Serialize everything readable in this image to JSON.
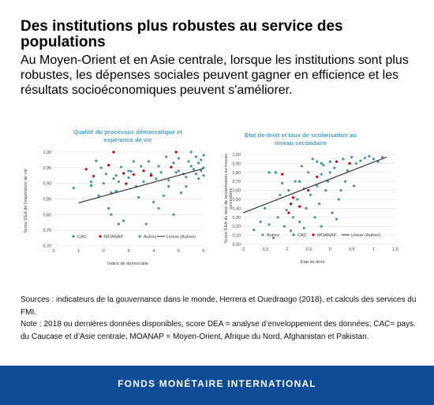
{
  "header": {
    "title": "Des institutions plus robustes au service des populations",
    "subtitle": "Au Moyen-Orient et en Asie centrale, lorsque les institutions sont plus robustes, les dépenses sociales peuvent gagner en efficience et les résultats socioéconomiques peuvent s'améliorer."
  },
  "colors": {
    "autres": "#4a8fb3",
    "cac": "#1f9e6e",
    "moanap": "#c00000",
    "trend": "#262626",
    "title_blue": "#4aa2c8",
    "footer_bg": "#0f4c97"
  },
  "chart_data": [
    {
      "type": "scatter",
      "title_lines": [
        "Qualité du processus démocratique et",
        "espérance de vie"
      ],
      "xlabel": "Indice de démocratie",
      "ylabel": "Score DEA de l'espérance de vie",
      "xlim": [
        0,
        6
      ],
      "ylim": [
        0.7,
        1.0
      ],
      "xticks": [
        "0",
        "1",
        "2",
        "3",
        "4",
        "5",
        "6"
      ],
      "yticks": [
        "0,70",
        "0,75",
        "0,80",
        "0,85",
        "0,90",
        "0,95",
        "1,00"
      ],
      "grid": true,
      "legend": [
        "CAC",
        "MOANAP",
        "Autres",
        "Linear (Autres)"
      ],
      "trendline": {
        "x": [
          1.0,
          6.0
        ],
        "y": [
          0.8375,
          0.9475
        ]
      },
      "series": [
        {
          "name": "CAC",
          "points": [
            [
              1.5,
              0.893
            ],
            [
              2.5,
              0.875
            ]
          ]
        },
        {
          "name": "MOANAP",
          "points": [
            [
              1.3,
              0.945
            ],
            [
              1.6,
              0.923
            ],
            [
              2.2,
              0.958
            ],
            [
              2.8,
              0.932
            ],
            [
              3.2,
              0.928
            ],
            [
              3.6,
              0.94
            ],
            [
              3.9,
              0.925
            ],
            [
              4.7,
              0.952
            ],
            [
              2.4,
              1.0
            ],
            [
              4.9,
              1.0
            ],
            [
              2.9,
              0.899
            ]
          ]
        },
        {
          "name": "Autres",
          "points": [
            [
              1.7,
              0.972
            ],
            [
              1.9,
              0.95
            ],
            [
              2.1,
              0.93
            ],
            [
              2.3,
              0.87
            ],
            [
              2.5,
              0.925
            ],
            [
              2.6,
              0.905
            ],
            [
              2.7,
              0.952
            ],
            [
              3.0,
              0.918
            ],
            [
              3.1,
              0.938
            ],
            [
              3.3,
              0.89
            ],
            [
              3.5,
              0.955
            ],
            [
              3.6,
              0.905
            ],
            [
              3.8,
              0.97
            ],
            [
              3.9,
              0.93
            ],
            [
              4.1,
              0.915
            ],
            [
              4.2,
              0.955
            ],
            [
              4.3,
              0.935
            ],
            [
              4.5,
              0.985
            ],
            [
              4.6,
              0.91
            ],
            [
              4.8,
              0.965
            ],
            [
              5.0,
              0.94
            ],
            [
              5.2,
              0.93
            ],
            [
              5.4,
              0.97
            ],
            [
              5.5,
              0.955
            ],
            [
              5.6,
              0.945
            ],
            [
              5.7,
              0.985
            ],
            [
              5.8,
              0.965
            ],
            [
              5.9,
              0.975
            ],
            [
              6.0,
              0.99
            ],
            [
              6.0,
              0.95
            ],
            [
              5.9,
              0.94
            ],
            [
              5.3,
              0.89
            ],
            [
              4.4,
              0.86
            ],
            [
              4.0,
              0.84
            ],
            [
              3.4,
              0.855
            ],
            [
              2.2,
              0.82
            ],
            [
              2.3,
              0.8
            ],
            [
              2.8,
              0.78
            ],
            [
              3.7,
              0.77
            ],
            [
              4.8,
              0.8
            ],
            [
              5.1,
              0.87
            ],
            [
              5.8,
              0.915
            ],
            [
              1.5,
              0.905
            ],
            [
              1.8,
              0.86
            ],
            [
              2.4,
              0.915
            ],
            [
              3.0,
              0.94
            ],
            [
              4.6,
              0.89
            ],
            [
              5.5,
              1.0
            ],
            [
              5.0,
              0.98
            ],
            [
              2.0,
              0.9
            ],
            [
              3.2,
              0.97
            ],
            [
              5.3,
              0.92
            ],
            [
              6.0,
              0.925
            ],
            [
              5.7,
              0.93
            ],
            [
              4.9,
              0.935
            ],
            [
              0.8,
              0.885
            ],
            [
              2.6,
              0.77
            ],
            [
              4.2,
              0.82
            ]
          ]
        }
      ]
    },
    {
      "type": "scatter",
      "title_lines": [
        "État de droit et taux de scolarisation au",
        "niveau secondaire"
      ],
      "xlabel": "État de droit",
      "ylabel_lines": [
        "Score DEA du taux de scolarisation au niveau",
        "secondaire"
      ],
      "xlim": [
        -2,
        1.5
      ],
      "ylim": [
        0.0,
        1.0
      ],
      "xticks": [
        "-2",
        "-1,5",
        "-1",
        "-0,5",
        "0",
        "0,5",
        "1",
        "1,5"
      ],
      "yticks": [
        "0,00",
        "0,10",
        "0,20",
        "0,30",
        "0,40",
        "0,50",
        "0,60",
        "0,70",
        "0,80",
        "0,90",
        "1,00"
      ],
      "grid": true,
      "legend": [
        "Autres",
        "CAC",
        "MOANAP",
        "Linear (Autres)"
      ],
      "trendline": {
        "x": [
          -2.0,
          1.3
        ],
        "y": [
          0.35,
          0.97
        ]
      },
      "series": [
        {
          "name": "CAC",
          "points": [
            [
              -1.4,
              0.8
            ],
            [
              -1.25,
              0.8
            ],
            [
              -0.7,
              0.7
            ],
            [
              -0.2,
              0.9
            ],
            [
              0.0,
              0.92
            ]
          ]
        },
        {
          "name": "MOANAP",
          "points": [
            [
              -1.1,
              0.78
            ],
            [
              -0.9,
              0.45
            ],
            [
              -0.95,
              0.35
            ],
            [
              -0.7,
              0.42
            ],
            [
              -0.5,
              0.6
            ],
            [
              -0.3,
              0.75
            ],
            [
              0.15,
              0.92
            ],
            [
              0.45,
              0.9
            ],
            [
              -0.85,
              0.52
            ]
          ]
        },
        {
          "name": "Autres",
          "points": [
            [
              -1.75,
              0.16
            ],
            [
              -1.6,
              0.25
            ],
            [
              -1.5,
              0.4
            ],
            [
              -1.3,
              0.07
            ],
            [
              -1.2,
              0.3
            ],
            [
              -1.15,
              0.55
            ],
            [
              -1.05,
              0.2
            ],
            [
              -1.0,
              0.38
            ],
            [
              -0.95,
              0.6
            ],
            [
              -0.9,
              0.15
            ],
            [
              -0.85,
              0.3
            ],
            [
              -0.8,
              0.7
            ],
            [
              -0.75,
              0.5
            ],
            [
              -0.7,
              0.25
            ],
            [
              -0.65,
              0.87
            ],
            [
              -0.6,
              0.62
            ],
            [
              -0.55,
              0.4
            ],
            [
              -0.5,
              0.8
            ],
            [
              -0.45,
              0.55
            ],
            [
              -0.4,
              0.95
            ],
            [
              -0.35,
              0.3
            ],
            [
              -0.3,
              0.65
            ],
            [
              -0.25,
              0.45
            ],
            [
              -0.2,
              0.78
            ],
            [
              -0.15,
              0.88
            ],
            [
              -0.1,
              0.6
            ],
            [
              -0.05,
              0.7
            ],
            [
              0.05,
              0.35
            ],
            [
              0.1,
              0.85
            ],
            [
              0.2,
              0.5
            ],
            [
              0.3,
              0.95
            ],
            [
              0.35,
              0.7
            ],
            [
              0.4,
              0.82
            ],
            [
              0.5,
              0.97
            ],
            [
              0.55,
              0.65
            ],
            [
              0.6,
              0.9
            ],
            [
              0.7,
              0.93
            ],
            [
              0.8,
              0.96
            ],
            [
              0.9,
              0.98
            ],
            [
              1.0,
              0.95
            ],
            [
              1.1,
              0.92
            ],
            [
              1.2,
              0.97
            ],
            [
              -1.1,
              0.68
            ],
            [
              -0.6,
              0.18
            ],
            [
              0.15,
              0.28
            ],
            [
              -0.2,
              0.2
            ],
            [
              -1.4,
              0.22
            ],
            [
              0.0,
              0.8
            ],
            [
              -0.3,
              0.92
            ],
            [
              0.25,
              0.6
            ]
          ]
        }
      ]
    }
  ],
  "sources": {
    "line1": "Sources : indicateurs de la gouvernance dans le monde, Herrera et Ouedraogo (2018), et calculs des services du FMI.",
    "line2": "Note : 2018 ou dernières données disponibles, score DEA = analyse d’enveloppement des données; CAC= pays du Caucase et d’Asie centrale, MOANAP = Moyen-Orient, Afrique du Nord, Afghanistan et Pakistan."
  },
  "footer": {
    "label": "FONDS MONÉTAIRE INTERNATIONAL"
  }
}
